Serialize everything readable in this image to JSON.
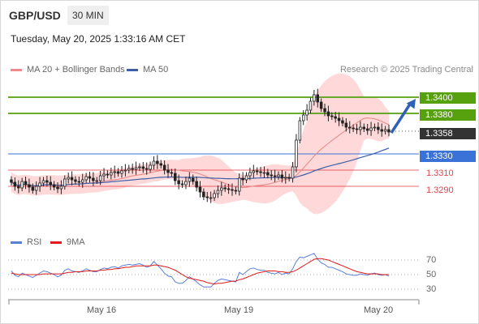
{
  "header": {
    "pair": "GBP/USD",
    "timeframe": "30 MIN",
    "datetime": "Tuesday, May 20, 2025 1:33:16 AM CET",
    "credit": "Research © 2025 Trading Central"
  },
  "legend": {
    "ma20": "MA 20 + Bollinger Bands",
    "ma50": "MA 50",
    "rsi": "RSI",
    "ma9": "9MA"
  },
  "colors": {
    "resistance": "#57a10f",
    "current": "#333333",
    "pivot": "#3a72d8",
    "support": "#e0434c",
    "bollinger": "#ffd2d2",
    "ma20": "#e98a8a",
    "ma50": "#3f5ea8",
    "rsi": "#5b7fd8",
    "rsi_ma": "#e01b1b",
    "arrow": "#2f62b4"
  },
  "levels": [
    {
      "value": "1.3400",
      "kind": "resistance"
    },
    {
      "value": "1.3380",
      "kind": "resistance"
    },
    {
      "value": "1.3358",
      "kind": "current"
    },
    {
      "value": "1.3330",
      "kind": "pivot"
    },
    {
      "value": "1.3310",
      "kind": "support"
    },
    {
      "value": "1.3290",
      "kind": "support"
    }
  ],
  "rsi_ticks": [
    "70",
    "50",
    "30"
  ],
  "x_ticks": [
    "May 16",
    "May 19",
    "May 20"
  ],
  "chart_data": {
    "type": "candlestick",
    "price_range": [
      1.3245,
      1.342
    ],
    "price_close_series": [
      1.3295,
      1.329,
      1.3288,
      1.3296,
      1.3292,
      1.3289,
      1.3285,
      1.329,
      1.3294,
      1.3297,
      1.3295,
      1.3292,
      1.3289,
      1.3287,
      1.329,
      1.3299,
      1.3301,
      1.3298,
      1.3296,
      1.3295,
      1.3298,
      1.3302,
      1.33,
      1.3297,
      1.3297,
      1.3303,
      1.3305,
      1.3304,
      1.3307,
      1.3308,
      1.3306,
      1.3309,
      1.331,
      1.3312,
      1.3311,
      1.3313,
      1.3314,
      1.3312,
      1.3311,
      1.3316,
      1.3321,
      1.3318,
      1.3316,
      1.331,
      1.3307,
      1.3306,
      1.3297,
      1.3293,
      1.3292,
      1.3296,
      1.33,
      1.3296,
      1.3289,
      1.3283,
      1.3277,
      1.3276,
      1.3276,
      1.3281,
      1.3285,
      1.3288,
      1.3287,
      1.3286,
      1.3285,
      1.3284,
      1.33,
      1.3298,
      1.3303,
      1.3307,
      1.3309,
      1.3308,
      1.3307,
      1.3307,
      1.3304,
      1.3303,
      1.3302,
      1.3304,
      1.33,
      1.3301,
      1.33,
      1.3314,
      1.3347,
      1.3371,
      1.3378,
      1.3384,
      1.3395,
      1.3403,
      1.3394,
      1.3386,
      1.3382,
      1.3377,
      1.3376,
      1.3374,
      1.3371,
      1.3368,
      1.3363,
      1.3362,
      1.3361,
      1.336,
      1.3363,
      1.3361,
      1.3359,
      1.3362,
      1.3363,
      1.336,
      1.3358,
      1.336,
      1.3357
    ],
    "ma20_direction": "rising",
    "ma50_direction": "rising",
    "projection": {
      "from": "1.3358",
      "to": "1.3400",
      "direction": "up"
    },
    "rsi": {
      "levels": [
        70,
        50,
        30
      ],
      "rsi_series": [
        55,
        49,
        47,
        52,
        50,
        48,
        46,
        49,
        52,
        55,
        54,
        52,
        50,
        47,
        49,
        56,
        58,
        55,
        54,
        53,
        55,
        58,
        56,
        54,
        54,
        57,
        59,
        58,
        60,
        61,
        59,
        62,
        63,
        64,
        63,
        64,
        65,
        63,
        60,
        62,
        68,
        63,
        58,
        52,
        48,
        47,
        40,
        38,
        38,
        42,
        47,
        44,
        40,
        36,
        33,
        33,
        33,
        38,
        42,
        44,
        43,
        42,
        41,
        40,
        53,
        50,
        54,
        58,
        59,
        57,
        56,
        56,
        53,
        52,
        51,
        53,
        50,
        52,
        51,
        58,
        68,
        74,
        73,
        75,
        77,
        79,
        71,
        66,
        64,
        60,
        60,
        58,
        56,
        54,
        51,
        50,
        49,
        49,
        51,
        50,
        49,
        51,
        52,
        50,
        49,
        50,
        48
      ],
      "ma9_series": [
        52,
        51,
        50,
        50,
        50,
        50,
        50,
        50,
        50,
        51,
        51,
        51,
        51,
        51,
        51,
        52,
        53,
        53,
        54,
        54,
        54,
        55,
        55,
        55,
        55,
        56,
        56,
        57,
        57,
        58,
        58,
        59,
        60,
        60,
        61,
        62,
        62,
        62,
        62,
        62,
        63,
        63,
        62,
        61,
        60,
        58,
        56,
        53,
        50,
        47,
        45,
        44,
        43,
        42,
        41,
        39,
        38,
        37,
        38,
        38,
        39,
        40,
        41,
        41,
        43,
        44,
        46,
        48,
        50,
        52,
        53,
        54,
        55,
        55,
        55,
        54,
        54,
        53,
        53,
        54,
        56,
        59,
        62,
        65,
        68,
        71,
        72,
        72,
        71,
        70,
        68,
        66,
        64,
        62,
        60,
        58,
        56,
        54,
        53,
        52,
        51,
        51,
        51,
        51,
        50,
        50,
        50
      ]
    },
    "x_ticks": [
      "May 16",
      "May 19",
      "May 20"
    ]
  }
}
